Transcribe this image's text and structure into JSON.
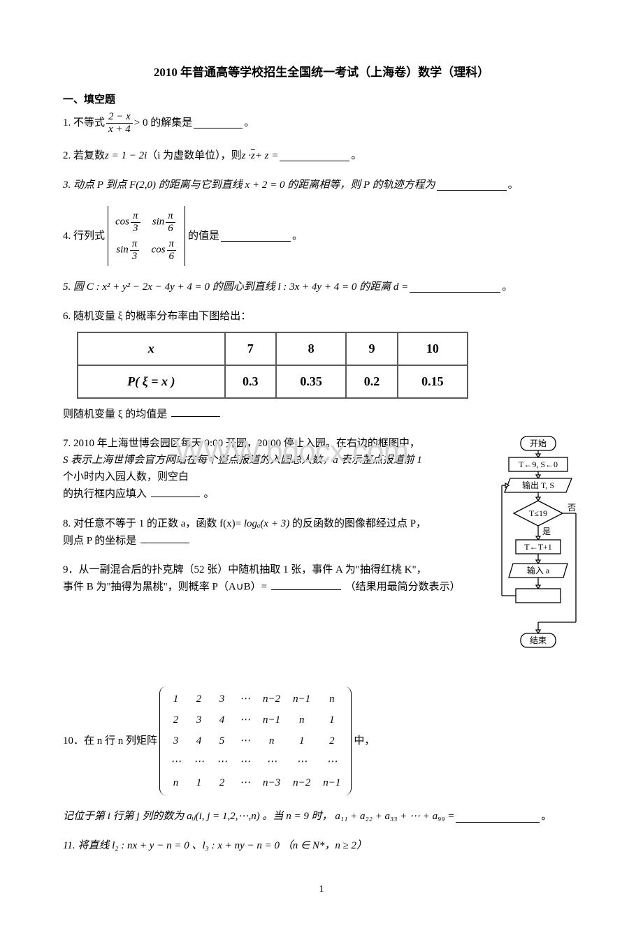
{
  "title": "2010 年普通高等学校招生全国统一考试（上海卷）数学（理科）",
  "section1": "一、填空题",
  "q1": {
    "pre": "1. 不等式",
    "num": "2 − x",
    "den": "x + 4",
    "post1": " > 0 的解集是",
    "post2": "。"
  },
  "q2": {
    "pre": "2. 若复数 ",
    "expr": "z = 1 − 2i",
    "mid": "（i 为虚数单位），则 ",
    "expr2a": "z · ",
    "expr2b": "z",
    "expr2c": " + z =",
    "post": "。"
  },
  "q3": {
    "pre": "3.  动点 P 到点 F(2,0) 的距离与它到直线 x + 2 = 0 的距离相等，则 P 的轨迹方程为",
    "post": "。"
  },
  "q4": {
    "pre": "4. 行列式",
    "c11n": "π",
    "c11d": "3",
    "c11f": "cos",
    "c12n": "π",
    "c12d": "6",
    "c12f": "sin",
    "c21n": "π",
    "c21d": "3",
    "c21f": "sin",
    "c22n": "π",
    "c22d": "6",
    "c22f": "cos",
    "post1": "的值是",
    "post2": "。"
  },
  "q5": {
    "text": "5.  圆 C : x² + y² − 2x − 4y + 4 = 0 的圆心到直线 l : 3x + 4y + 4 = 0 的距离 d =",
    "post": "。"
  },
  "q6": {
    "text": "6. 随机变量 ξ 的概率分布率由下图给出：",
    "table": {
      "header": [
        "x",
        "7",
        "8",
        "9",
        "10"
      ],
      "row": [
        "P( ξ = x )",
        "0.3",
        "0.35",
        "0.2",
        "0.15"
      ]
    },
    "after": "则随机变量 ξ 的均值是"
  },
  "watermark": "WWW.bdocx.com",
  "q7": {
    "l1": "7.  2010 年上海世博会园区每天 9:00 开园，20:00 停止入园。在右边的框图中，",
    "l2": "S 表示上海世博会官方网站在每个整点报道的入园总人数，a 表示整点报道前 1",
    "l3": "个小时内入园人数，则空白",
    "l4pre": "的执行框内应填入",
    "l4post": "。"
  },
  "q8": {
    "pre": "8. 对任意不等于 1 的正数 a，函数 f(x)=",
    "expr": "logₐ(x + 3)",
    "post": "的反函数的图像都经过点 P，",
    "l2": "则点 P 的坐标是"
  },
  "q9": {
    "l1": "9．从一副混合后的扑克牌（52 张）中随机抽取 1 张，事件 A 为\"抽得红桃 K\"，",
    "l2pre": "事件 B 为\"抽得为黑桃\"，则概率 P（A∪B）=",
    "l2post": "（结果用最简分数表示）"
  },
  "q10": {
    "pre": "10．在 n 行 n 列矩阵",
    "post": "中，",
    "matrix": [
      [
        "1",
        "2",
        "3",
        "⋯",
        "n−2",
        "n−1",
        "n"
      ],
      [
        "2",
        "3",
        "4",
        "⋯",
        "n−1",
        "n",
        "1"
      ],
      [
        "3",
        "4",
        "5",
        "⋯",
        "n",
        "1",
        "2"
      ],
      [
        "⋯",
        "⋯",
        "⋯",
        "⋯",
        "⋯",
        "⋯",
        "⋯"
      ],
      [
        "n",
        "1",
        "2",
        "⋯",
        "n−3",
        "n−2",
        "n−1"
      ]
    ],
    "line2pre": "记位于第 i 行第 j 列的数为 aᵢⱼ(i, j = 1,2,⋯,n) 。当 n = 9 时， a₁₁ + a₂₂ + a₃₃ + ⋯ + a₉₉ =",
    "line2post": "。"
  },
  "q11": {
    "text": "11.  将直线 l₂ : nx + y − n = 0 、l₃ : x + ny − n = 0 （n ∈ N*，n ≥ 2）"
  },
  "flowchart": {
    "start": "开始",
    "init": "T←9, S←0",
    "output": "输出 T, S",
    "cond": "T≤19",
    "no": "否",
    "yes": "是",
    "step": "T←T+1",
    "input": "输入 a",
    "end": "结束",
    "stroke": "#000000",
    "fill": "#ffffff",
    "fontsize": 12
  },
  "pagenum": "1"
}
